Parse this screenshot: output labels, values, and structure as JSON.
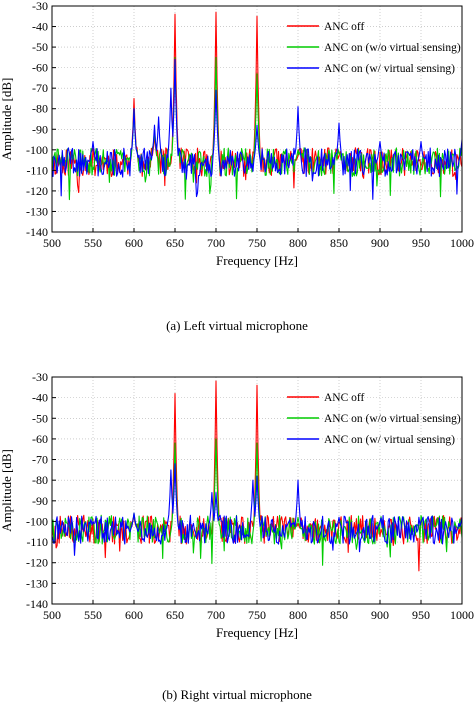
{
  "colors": {
    "anc_off": "#ff0000",
    "anc_wo": "#00cc00",
    "anc_w": "#0000ff",
    "grid": "#b0b0b0"
  },
  "chart_data": [
    {
      "type": "line",
      "caption": "(a) Left virtual microphone",
      "xlabel": "Frequency [Hz]",
      "ylabel": "Amplitude [dB]",
      "xlim": [
        500,
        1000
      ],
      "ylim": [
        -140,
        -30
      ],
      "xticks": [
        500,
        550,
        600,
        650,
        700,
        750,
        800,
        850,
        900,
        950,
        1000
      ],
      "yticks": [
        -30,
        -40,
        -50,
        -60,
        -70,
        -80,
        -90,
        -100,
        -110,
        -120,
        -130,
        -140
      ],
      "grid": true,
      "legend_position": "top-right",
      "noise_floor_db": -106,
      "series": [
        {
          "name": "ANC off",
          "color": "#ff0000",
          "peaks": [
            [
              600,
              -75
            ],
            [
              625,
              -93
            ],
            [
              650,
              -34
            ],
            [
              700,
              -33
            ],
            [
              750,
              -35
            ],
            [
              800,
              -103
            ],
            [
              850,
              -103
            ]
          ]
        },
        {
          "name": "ANC on (w/o virtual sensing)",
          "color": "#00cc00",
          "peaks": [
            [
              600,
              -80
            ],
            [
              625,
              -90
            ],
            [
              650,
              -55
            ],
            [
              700,
              -55
            ],
            [
              750,
              -63
            ],
            [
              800,
              -100
            ],
            [
              850,
              -102
            ]
          ]
        },
        {
          "name": "ANC on (w/ virtual sensing)",
          "color": "#0000ff",
          "peaks": [
            [
              550,
              -96
            ],
            [
              600,
              -80
            ],
            [
              625,
              -88
            ],
            [
              630,
              -84
            ],
            [
              645,
              -70
            ],
            [
              650,
              -56
            ],
            [
              700,
              -71
            ],
            [
              750,
              -88
            ],
            [
              800,
              -79
            ],
            [
              850,
              -87
            ],
            [
              900,
              -96
            ],
            [
              950,
              -96
            ],
            [
              1000,
              -95
            ]
          ]
        }
      ]
    },
    {
      "type": "line",
      "caption": "(b) Right virtual microphone",
      "xlabel": "Frequency [Hz]",
      "ylabel": "Amplitude [dB]",
      "xlim": [
        500,
        1000
      ],
      "ylim": [
        -140,
        -30
      ],
      "xticks": [
        500,
        550,
        600,
        650,
        700,
        750,
        800,
        850,
        900,
        950,
        1000
      ],
      "yticks": [
        -30,
        -40,
        -50,
        -60,
        -70,
        -80,
        -90,
        -100,
        -110,
        -120,
        -130,
        -140
      ],
      "grid": true,
      "legend_position": "top-right",
      "noise_floor_db": -104,
      "series": [
        {
          "name": "ANC off",
          "color": "#ff0000",
          "peaks": [
            [
              600,
              -98
            ],
            [
              650,
              -38
            ],
            [
              700,
              -32
            ],
            [
              750,
              -34
            ],
            [
              800,
              -101
            ]
          ]
        },
        {
          "name": "ANC on (w/o virtual sensing)",
          "color": "#00cc00",
          "peaks": [
            [
              600,
              -96
            ],
            [
              650,
              -62
            ],
            [
              700,
              -60
            ],
            [
              750,
              -62
            ],
            [
              800,
              -98
            ]
          ]
        },
        {
          "name": "ANC on (w/ virtual sensing)",
          "color": "#0000ff",
          "peaks": [
            [
              550,
              -100
            ],
            [
              600,
              -96
            ],
            [
              645,
              -75
            ],
            [
              650,
              -72
            ],
            [
              695,
              -86
            ],
            [
              700,
              -86
            ],
            [
              745,
              -80
            ],
            [
              750,
              -78
            ],
            [
              800,
              -80
            ],
            [
              850,
              -98
            ],
            [
              900,
              -100
            ],
            [
              950,
              -100
            ],
            [
              1000,
              -98
            ]
          ]
        }
      ]
    }
  ]
}
